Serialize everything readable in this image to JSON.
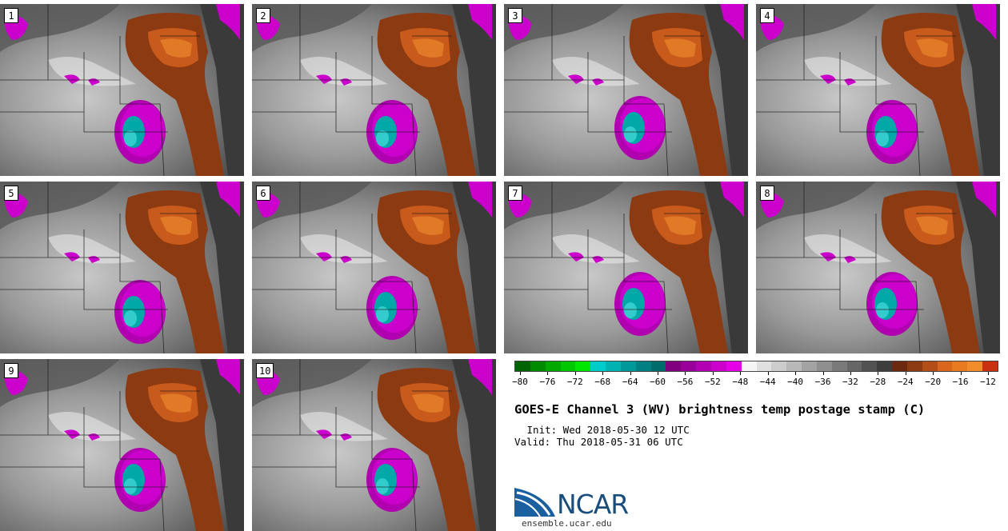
{
  "title": "GOES-E Channel 3 (WV) brightness temp postage stamp (C)",
  "init": " Init: Wed 2018-05-30 12 UTC",
  "valid": "Valid: Thu 2018-05-31 06 UTC",
  "logo_text": "NCAR",
  "site": "ensemble.ucar.edu",
  "panels": [
    {
      "label": "1"
    },
    {
      "label": "2"
    },
    {
      "label": "3"
    },
    {
      "label": "4"
    },
    {
      "label": "5"
    },
    {
      "label": "6"
    },
    {
      "label": "7"
    },
    {
      "label": "8"
    },
    {
      "label": "9"
    },
    {
      "label": "10"
    }
  ],
  "colorbar": {
    "colors": [
      "#006400",
      "#008a00",
      "#00a800",
      "#00c800",
      "#00e600",
      "#00cccc",
      "#00b3b3",
      "#009999",
      "#008080",
      "#006b6b",
      "#800080",
      "#990099",
      "#b300b3",
      "#cc00cc",
      "#e600e6",
      "#f5f5f5",
      "#e0e0e0",
      "#cccccc",
      "#b8b8b8",
      "#a3a3a3",
      "#8f8f8f",
      "#7a7a7a",
      "#666666",
      "#525252",
      "#3d3d3d",
      "#6b2a10",
      "#8c3a12",
      "#b34e18",
      "#d9661c",
      "#e87a20",
      "#f08c2a",
      "#c83010"
    ],
    "tick_labels": [
      "−80",
      "−76",
      "−72",
      "−68",
      "−64",
      "−60",
      "−56",
      "−52",
      "−48",
      "−44",
      "−40",
      "−36",
      "−32",
      "−28",
      "−24",
      "−20",
      "−16",
      "−12"
    ]
  }
}
